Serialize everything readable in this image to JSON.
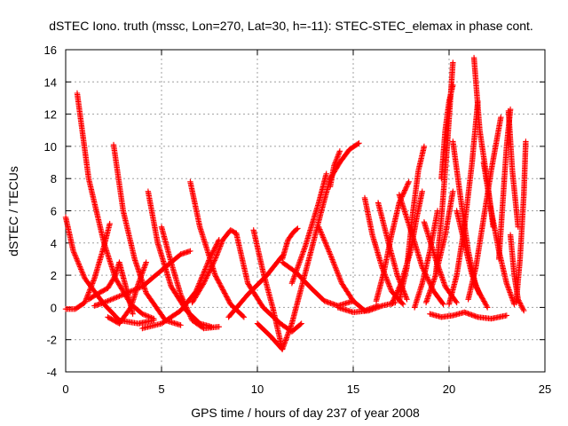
{
  "chart_data": {
    "type": "scatter",
    "title": "dSTEC Iono. truth (mssc, Lon=270, Lat=30, h=-11): STEC-STEC_elemax in phase cont.",
    "xlabel": "GPS time / hours of day 237 of year 2008",
    "ylabel": "dSTEC  / TECUs",
    "xlim": [
      0,
      25
    ],
    "ylim": [
      -4,
      16
    ],
    "xticks": [
      0,
      5,
      10,
      15,
      20,
      25
    ],
    "yticks": [
      -4,
      -2,
      0,
      2,
      4,
      6,
      8,
      10,
      12,
      14,
      16
    ],
    "grid": true,
    "marker": "+",
    "color": "#ff0000",
    "series": [
      {
        "x": [
          0.0,
          0.4,
          1.0,
          2.0,
          2.8,
          3.8,
          4.6
        ],
        "y": [
          5.6,
          3.5,
          1.8,
          0.2,
          -0.8,
          -1.0,
          -0.8
        ]
      },
      {
        "x": [
          0.0,
          0.5,
          1.0,
          1.5,
          2.0,
          2.3
        ],
        "y": [
          -0.1,
          -0.1,
          0.3,
          1.8,
          3.8,
          5.2
        ]
      },
      {
        "x": [
          0.6,
          1.2,
          2.0,
          2.6,
          3.4,
          4.0,
          4.6
        ],
        "y": [
          13.3,
          8.0,
          4.0,
          1.8,
          0.2,
          -0.4,
          -0.7
        ]
      },
      {
        "x": [
          1.5,
          2.0,
          3.0,
          4.0,
          5.0,
          6.0,
          6.5
        ],
        "y": [
          0.1,
          0.3,
          0.8,
          1.3,
          2.3,
          3.3,
          3.5
        ]
      },
      {
        "x": [
          2.5,
          3.0,
          3.6,
          4.2,
          5.2,
          6.0
        ],
        "y": [
          10.1,
          6.0,
          3.0,
          0.9,
          -0.8,
          -1.1
        ]
      },
      {
        "x": [
          1.2,
          1.6,
          2.2,
          2.6,
          2.8,
          3.2,
          3.5
        ],
        "y": [
          0.5,
          0.8,
          1.2,
          2.0,
          2.8,
          1.0,
          -0.4
        ]
      },
      {
        "x": [
          2.2,
          2.8,
          3.4,
          3.8,
          4.2
        ],
        "y": [
          -0.6,
          -1.0,
          0.0,
          1.5,
          2.8
        ]
      },
      {
        "x": [
          4.3,
          4.8,
          5.5,
          6.3,
          7.0,
          7.6
        ],
        "y": [
          7.2,
          4.0,
          1.3,
          -0.2,
          -1.0,
          -1.2
        ]
      },
      {
        "x": [
          4.0,
          5.0,
          6.0,
          6.8,
          7.5,
          8.0
        ],
        "y": [
          -1.3,
          -1.0,
          -0.2,
          1.0,
          3.0,
          4.2
        ]
      },
      {
        "x": [
          5.0,
          5.5,
          6.0,
          6.6,
          7.2,
          8.0
        ],
        "y": [
          5.0,
          2.8,
          0.8,
          -0.8,
          -1.3,
          -1.2
        ]
      },
      {
        "x": [
          6.5,
          7.0,
          7.8,
          8.6,
          9.3
        ],
        "y": [
          7.8,
          5.0,
          2.0,
          0.2,
          -0.6
        ]
      },
      {
        "x": [
          6.6,
          7.2,
          7.8,
          8.2,
          8.6,
          8.9
        ],
        "y": [
          0.3,
          1.5,
          3.0,
          4.2,
          4.8,
          4.6
        ]
      },
      {
        "x": [
          8.9,
          9.5,
          10.3,
          11.2,
          11.8,
          12.3
        ],
        "y": [
          4.6,
          1.5,
          0.0,
          -1.0,
          -1.5,
          -1.0
        ]
      },
      {
        "x": [
          9.8,
          10.3,
          10.8,
          11.3
        ],
        "y": [
          4.8,
          2.2,
          0.0,
          -2.6
        ]
      },
      {
        "x": [
          10.0,
          10.7,
          11.3,
          11.8,
          12.2
        ],
        "y": [
          -1.0,
          -1.8,
          -2.6,
          -1.0,
          0.8
        ]
      },
      {
        "x": [
          11.3,
          11.6,
          11.9,
          12.1
        ],
        "y": [
          3.0,
          4.2,
          4.7,
          4.9
        ]
      },
      {
        "x": [
          8.5,
          9.5,
          10.5,
          11.3
        ],
        "y": [
          -0.6,
          0.8,
          2.0,
          3.2
        ]
      },
      {
        "x": [
          11.3,
          12.0,
          12.8,
          13.5,
          14.2,
          15.0
        ],
        "y": [
          2.8,
          2.2,
          1.2,
          0.4,
          0.1,
          0.4
        ]
      },
      {
        "x": [
          12.2,
          12.8,
          13.3,
          13.8,
          14.3,
          14.8,
          15.3
        ],
        "y": [
          0.8,
          3.5,
          5.8,
          8.0,
          9.0,
          9.8,
          10.2
        ]
      },
      {
        "x": [
          11.8,
          12.5,
          13.2,
          13.6
        ],
        "y": [
          1.5,
          3.8,
          6.5,
          8.3
        ]
      },
      {
        "x": [
          13.2,
          13.8,
          14.4,
          15.0,
          15.6,
          16.3
        ],
        "y": [
          5.0,
          3.3,
          1.5,
          0.4,
          -0.2,
          0.1
        ]
      },
      {
        "x": [
          13.8,
          14.0,
          14.3
        ],
        "y": [
          7.5,
          8.8,
          9.7
        ]
      },
      {
        "x": [
          14.2,
          15.0,
          15.8,
          16.5,
          17.2
        ],
        "y": [
          0.0,
          -0.3,
          -0.2,
          0.1,
          0.3
        ]
      },
      {
        "x": [
          15.6,
          16.0,
          16.5,
          17.0,
          17.6
        ],
        "y": [
          6.8,
          4.5,
          2.5,
          1.0,
          0.2
        ]
      },
      {
        "x": [
          16.3,
          16.8,
          17.3,
          17.8
        ],
        "y": [
          6.5,
          4.2,
          2.0,
          0.5
        ]
      },
      {
        "x": [
          16.2,
          16.6,
          17.0,
          17.4,
          17.9
        ],
        "y": [
          0.4,
          2.2,
          4.5,
          6.5,
          7.8
        ]
      },
      {
        "x": [
          17.0,
          17.5,
          18.0,
          18.3,
          18.6
        ],
        "y": [
          0.2,
          1.5,
          3.5,
          5.5,
          7.2
        ]
      },
      {
        "x": [
          17.4,
          18.0,
          18.6,
          19.2,
          19.7
        ],
        "y": [
          7.0,
          4.8,
          2.5,
          1.0,
          0.2
        ]
      },
      {
        "x": [
          17.4,
          17.8,
          18.1,
          18.4,
          18.7
        ],
        "y": [
          0.4,
          2.5,
          5.8,
          8.5,
          10.0
        ]
      },
      {
        "x": [
          18.7,
          19.3,
          19.8,
          20.4
        ],
        "y": [
          5.3,
          3.0,
          1.3,
          0.3
        ]
      },
      {
        "x": [
          18.2,
          18.6,
          19.0,
          19.4
        ],
        "y": [
          0.0,
          1.5,
          3.5,
          6.0
        ]
      },
      {
        "x": [
          18.8,
          19.3,
          19.8,
          20.2
        ],
        "y": [
          0.3,
          2.0,
          4.5,
          7.2
        ]
      },
      {
        "x": [
          19.3,
          19.6,
          19.9,
          20.2
        ],
        "y": [
          2.0,
          5.5,
          10.0,
          15.2
        ]
      },
      {
        "x": [
          19.6,
          19.8,
          20.0,
          20.2
        ],
        "y": [
          8.0,
          11.0,
          12.8,
          13.8
        ]
      },
      {
        "x": [
          20.2,
          20.6,
          21.0,
          21.4,
          22.0
        ],
        "y": [
          10.3,
          6.8,
          3.5,
          1.3,
          0.0
        ]
      },
      {
        "x": [
          20.4,
          20.8,
          21.2,
          21.6
        ],
        "y": [
          6.0,
          4.0,
          2.0,
          0.8
        ]
      },
      {
        "x": [
          20.0,
          20.4,
          20.8,
          21.2,
          21.5
        ],
        "y": [
          0.2,
          2.0,
          5.0,
          9.0,
          12.8
        ]
      },
      {
        "x": [
          21.3,
          21.6,
          22.0,
          22.3
        ],
        "y": [
          15.5,
          11.0,
          7.8,
          5.0
        ]
      },
      {
        "x": [
          21.0,
          21.4,
          21.8,
          22.2,
          22.7
        ],
        "y": [
          0.5,
          2.5,
          5.5,
          8.5,
          11.8
        ]
      },
      {
        "x": [
          21.8,
          22.2,
          22.6,
          23.0,
          23.4
        ],
        "y": [
          9.0,
          6.0,
          3.5,
          1.5,
          0.2
        ]
      },
      {
        "x": [
          22.6,
          22.8,
          23.0,
          23.2
        ],
        "y": [
          3.0,
          6.5,
          10.0,
          12.3
        ]
      },
      {
        "x": [
          23.2,
          23.4,
          23.6,
          23.9
        ],
        "y": [
          4.5,
          2.0,
          0.5,
          -0.2
        ]
      },
      {
        "x": [
          23.1,
          23.3,
          23.6
        ],
        "y": [
          12.2,
          8.5,
          5.0
        ]
      },
      {
        "x": [
          23.5,
          23.7,
          23.9,
          24.0
        ],
        "y": [
          0.3,
          3.0,
          7.0,
          10.3
        ]
      },
      {
        "x": [
          19.0,
          19.6,
          20.2,
          20.8,
          21.5,
          22.2,
          23.0
        ],
        "y": [
          -0.4,
          -0.6,
          -0.5,
          -0.3,
          -0.6,
          -0.7,
          -0.5
        ]
      }
    ]
  }
}
